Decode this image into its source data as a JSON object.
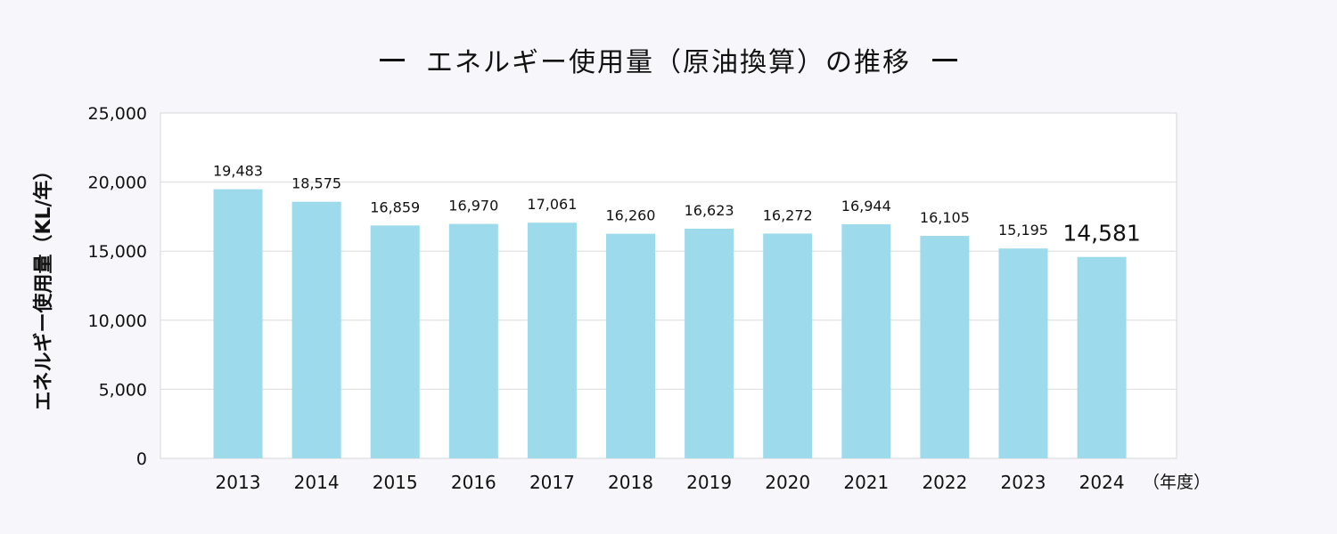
{
  "chart_data": {
    "type": "bar",
    "title": "エネルギー使用量（原油換算）の推移",
    "ylabel": "エネルギー使用量（KL/年）",
    "xlabel": "（年度）",
    "categories": [
      "2013",
      "2014",
      "2015",
      "2016",
      "2017",
      "2018",
      "2019",
      "2020",
      "2021",
      "2022",
      "2023",
      "2024"
    ],
    "values": [
      19483,
      18575,
      16859,
      16970,
      17061,
      16260,
      16623,
      16272,
      16944,
      16105,
      15195,
      14581
    ],
    "value_labels": [
      "19,483",
      "18,575",
      "16,859",
      "16,970",
      "17,061",
      "16,260",
      "16,623",
      "16,272",
      "16,944",
      "16,105",
      "15,195",
      "14,581"
    ],
    "ylim": [
      0,
      25000
    ],
    "yticks": [
      0,
      5000,
      10000,
      15000,
      20000,
      25000
    ],
    "ytick_labels": [
      "0",
      "5,000",
      "10,000",
      "15,000",
      "20,000",
      "25,000"
    ],
    "grid": true,
    "bar_color": "#9ddaec",
    "highlight_last_label": true
  }
}
